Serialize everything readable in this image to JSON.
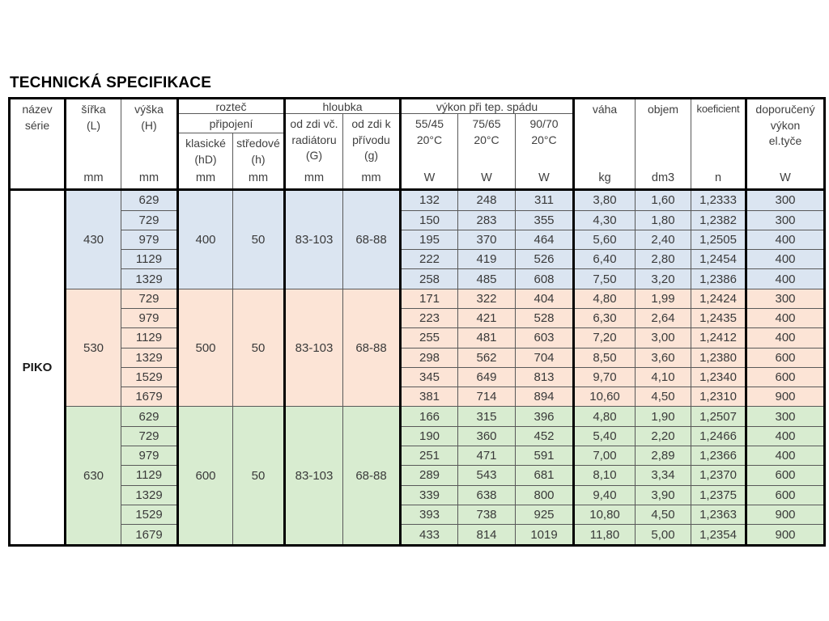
{
  "title": "TECHNICKÁ SPECIFIKACE",
  "series": "PIKO",
  "colors": {
    "block_blue": "#dbe5f1",
    "block_orange": "#fce4d6",
    "block_green": "#d8ecd0",
    "border_thick": "#000000",
    "border_thin": "#595959",
    "text": "#3f3f3f"
  },
  "header": {
    "nazev": "název\nsérie",
    "sirka_label": "šířka\n(L)",
    "sirka_unit": "mm",
    "vyska_label": "výška\n(H)",
    "vyska_unit": "mm",
    "roztec": "rozteč",
    "pripojeni": "připojení",
    "klasicke_label": "klasické\n(hD)",
    "klasicke_unit": "mm",
    "stredove_label": "středové\n(h)",
    "stredove_unit": "mm",
    "hloubka": "hloubka",
    "odzdi_vc_label": "od zdi vč.\nradiátoru\n(G)",
    "odzdi_vc_unit": "mm",
    "odzdi_k_label": "od zdi k\npřívodu\n(g)",
    "odzdi_k_unit": "mm",
    "vykon": "výkon při tep.  spádu",
    "t1_label": "55/45\n20°C",
    "t1_unit": "W",
    "t2_label": "75/65\n20°C",
    "t2_unit": "W",
    "t3_label": "90/70\n20°C",
    "t3_unit": "W",
    "vaha_label": "váha",
    "vaha_unit": "kg",
    "objem_label": "objem",
    "objem_unit": "dm3",
    "koeficient_label": "koeficient",
    "koeficient_unit": "n",
    "doporuceny_label": "doporučený\nvýkon\nel.tyče",
    "doporuceny_unit": "W"
  },
  "blocks": [
    {
      "bg": "#dbe5f1",
      "sirka": "430",
      "klasicke": "400",
      "stredove": "50",
      "hloubka_g": "83-103",
      "hloubka_gs": "68-88",
      "rows": [
        [
          "629",
          "132",
          "248",
          "311",
          "3,80",
          "1,60",
          "1,2333",
          "300"
        ],
        [
          "729",
          "150",
          "283",
          "355",
          "4,30",
          "1,80",
          "1,2382",
          "300"
        ],
        [
          "979",
          "195",
          "370",
          "464",
          "5,60",
          "2,40",
          "1,2505",
          "400"
        ],
        [
          "1129",
          "222",
          "419",
          "526",
          "6,40",
          "2,80",
          "1,2454",
          "400"
        ],
        [
          "1329",
          "258",
          "485",
          "608",
          "7,50",
          "3,20",
          "1,2386",
          "400"
        ]
      ]
    },
    {
      "bg": "#fce4d6",
      "sirka": "530",
      "klasicke": "500",
      "stredove": "50",
      "hloubka_g": "83-103",
      "hloubka_gs": "68-88",
      "rows": [
        [
          "729",
          "171",
          "322",
          "404",
          "4,80",
          "1,99",
          "1,2424",
          "300"
        ],
        [
          "979",
          "223",
          "421",
          "528",
          "6,30",
          "2,64",
          "1,2435",
          "400"
        ],
        [
          "1129",
          "255",
          "481",
          "603",
          "7,20",
          "3,00",
          "1,2412",
          "400"
        ],
        [
          "1329",
          "298",
          "562",
          "704",
          "8,50",
          "3,60",
          "1,2380",
          "600"
        ],
        [
          "1529",
          "345",
          "649",
          "813",
          "9,70",
          "4,10",
          "1,2340",
          "600"
        ],
        [
          "1679",
          "381",
          "714",
          "894",
          "10,60",
          "4,50",
          "1,2310",
          "900"
        ]
      ]
    },
    {
      "bg": "#d8ecd0",
      "sirka": "630",
      "klasicke": "600",
      "stredove": "50",
      "hloubka_g": "83-103",
      "hloubka_gs": "68-88",
      "rows": [
        [
          "629",
          "166",
          "315",
          "396",
          "4,80",
          "1,90",
          "1,2507",
          "300"
        ],
        [
          "729",
          "190",
          "360",
          "452",
          "5,40",
          "2,20",
          "1,2466",
          "400"
        ],
        [
          "979",
          "251",
          "471",
          "591",
          "7,00",
          "2,89",
          "1,2366",
          "400"
        ],
        [
          "1129",
          "289",
          "543",
          "681",
          "8,10",
          "3,34",
          "1,2370",
          "600"
        ],
        [
          "1329",
          "339",
          "638",
          "800",
          "9,40",
          "3,90",
          "1,2375",
          "600"
        ],
        [
          "1529",
          "393",
          "738",
          "925",
          "10,80",
          "4,50",
          "1,2363",
          "900"
        ],
        [
          "1679",
          "433",
          "814",
          "1019",
          "11,80",
          "5,00",
          "1,2354",
          "900"
        ]
      ]
    }
  ]
}
